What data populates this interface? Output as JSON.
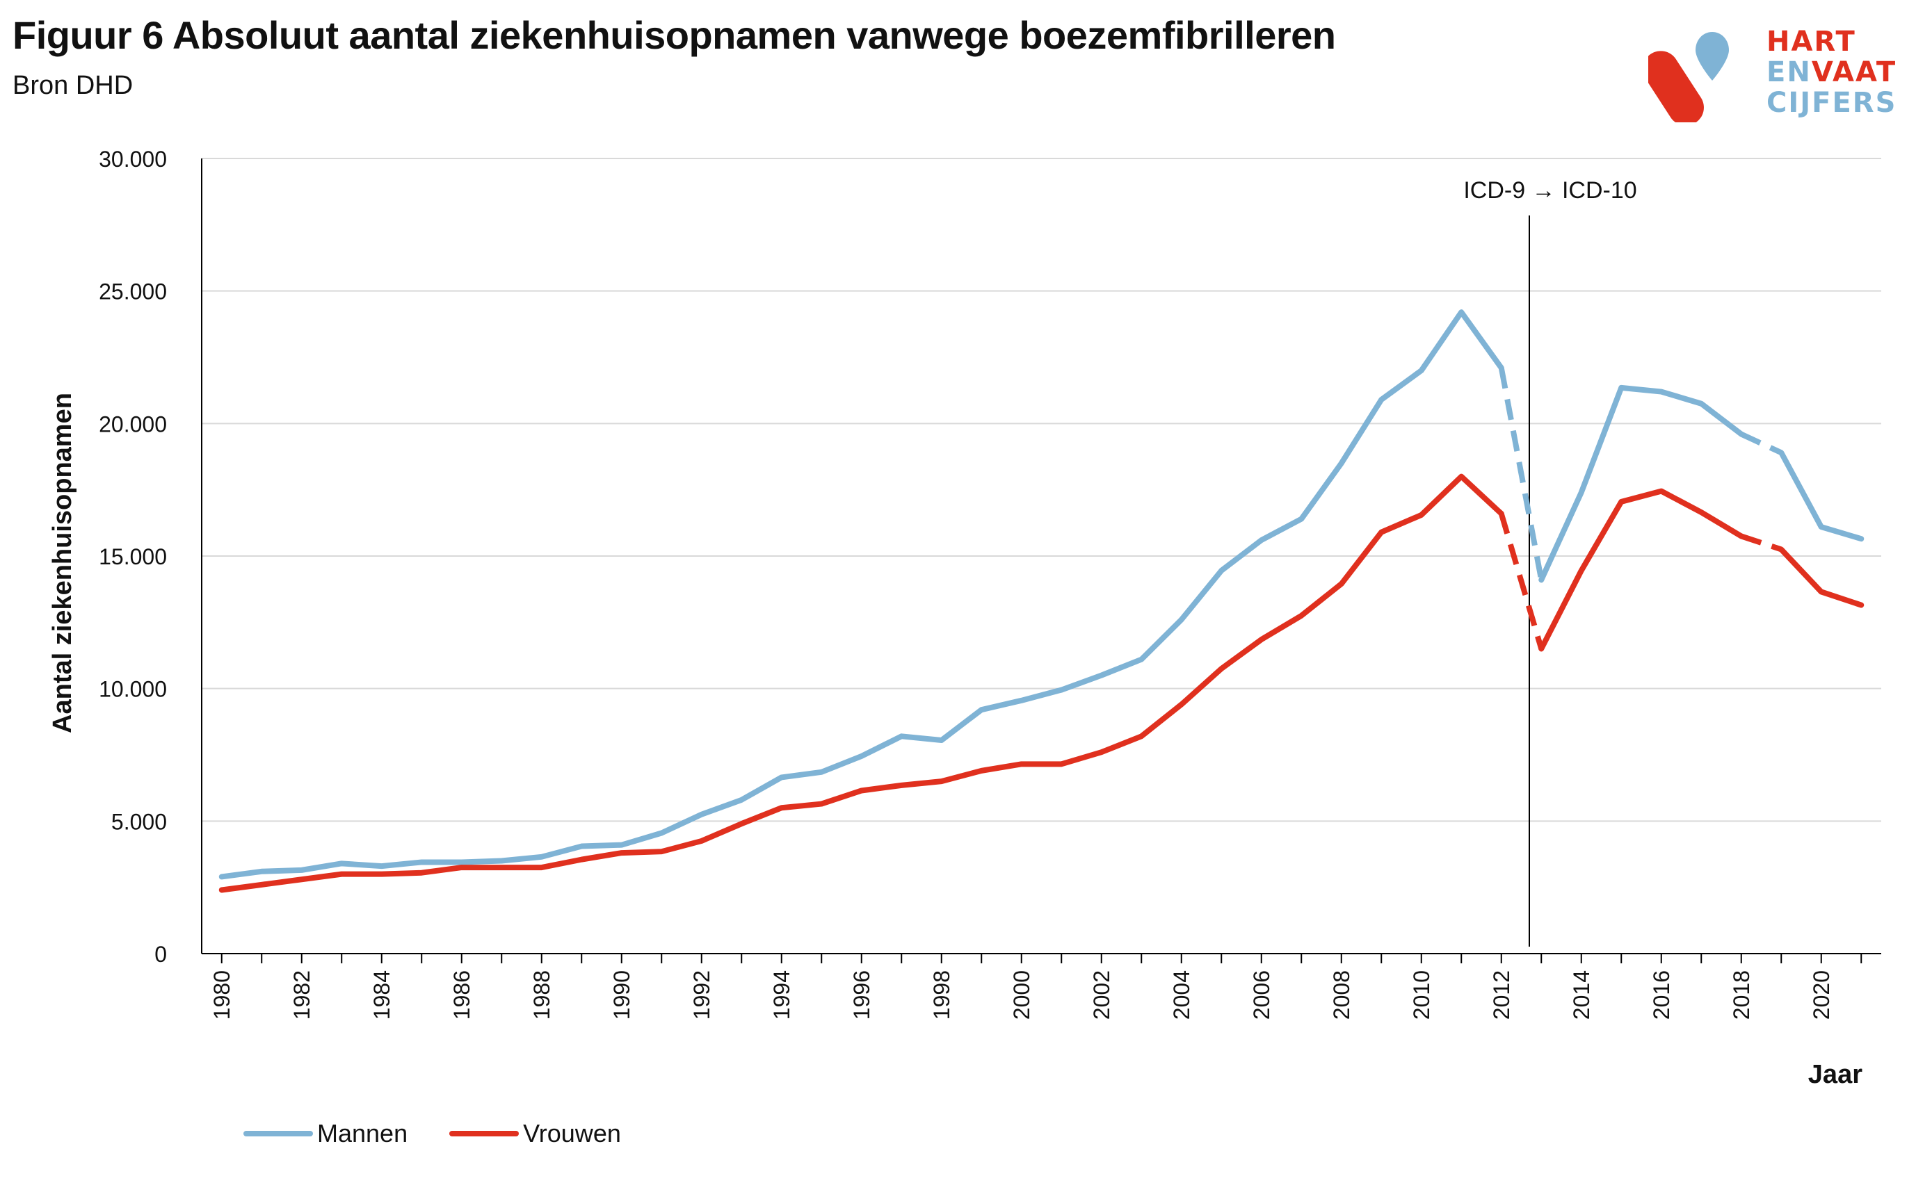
{
  "header": {
    "title": "Figuur 6 Absoluut aantal ziekenhuisopnamen vanwege boezemfibrilleren",
    "subtitle": "Bron DHD"
  },
  "logo": {
    "line1": "HART",
    "line2a": "EN",
    "line2b": "VAAT",
    "line3": "CIJFERS",
    "icon": "heart-vessel-logo-icon"
  },
  "colors": {
    "mannen": "#7fb3d5",
    "vrouwen": "#e0301e",
    "grid": "#d9d9d9",
    "axis": "#000000"
  },
  "chart_data": {
    "type": "line",
    "title": "Figuur 6 Absoluut aantal ziekenhuisopnamen vanwege boezemfibrilleren",
    "xlabel": "Jaar",
    "ylabel": "Aantal ziekenhuisopnamen",
    "ylim": [
      0,
      30000
    ],
    "xlim": [
      1980,
      2021
    ],
    "yticks": [
      0,
      5000,
      10000,
      15000,
      20000,
      25000,
      30000
    ],
    "ytick_labels": [
      "0",
      "5.000",
      "10.000",
      "15.000",
      "20.000",
      "25.000",
      "30.000"
    ],
    "xtick_labels": [
      "1980",
      "1982",
      "1984",
      "1986",
      "1988",
      "1990",
      "1992",
      "1994",
      "1996",
      "1998",
      "2000",
      "2002",
      "2004",
      "2006",
      "2008",
      "2010",
      "2012",
      "2014",
      "2016",
      "2018",
      "2020"
    ],
    "grid": true,
    "legend_position": "bottom-left",
    "x": [
      1980,
      1981,
      1982,
      1983,
      1984,
      1985,
      1986,
      1987,
      1988,
      1989,
      1990,
      1991,
      1992,
      1993,
      1994,
      1995,
      1996,
      1997,
      1998,
      1999,
      2000,
      2001,
      2002,
      2003,
      2004,
      2005,
      2006,
      2007,
      2008,
      2009,
      2010,
      2011,
      2012,
      2013,
      2014,
      2015,
      2016,
      2017,
      2018,
      2019,
      2020,
      2021
    ],
    "series": [
      {
        "name": "Mannen",
        "values": [
          2900,
          3100,
          3150,
          3400,
          3300,
          3450,
          3450,
          3500,
          3650,
          4050,
          4100,
          4550,
          5250,
          5800,
          6650,
          6850,
          7450,
          8200,
          8050,
          9200,
          9550,
          9950,
          10500,
          11100,
          12600,
          14450,
          15600,
          16400,
          18500,
          20900,
          22000,
          24200,
          22100,
          14100,
          17400,
          21350,
          21200,
          20750,
          19600,
          18900,
          16100,
          15650
        ]
      },
      {
        "name": "Vrouwen",
        "values": [
          2400,
          2600,
          2800,
          3000,
          3000,
          3050,
          3250,
          3250,
          3250,
          3550,
          3800,
          3850,
          4250,
          4900,
          5500,
          5650,
          6150,
          6350,
          6500,
          6900,
          7150,
          7150,
          7600,
          8200,
          9400,
          10750,
          11850,
          12750,
          13950,
          15900,
          16550,
          18000,
          16600,
          11500,
          14450,
          17050,
          17450,
          16650,
          15750,
          15250,
          13650,
          13150
        ]
      }
    ],
    "dashed_segments": [
      [
        2012,
        2013
      ],
      [
        2018,
        2019
      ]
    ],
    "annotation": {
      "text": "ICD-9 → ICD-10",
      "x": 2012.7
    }
  }
}
